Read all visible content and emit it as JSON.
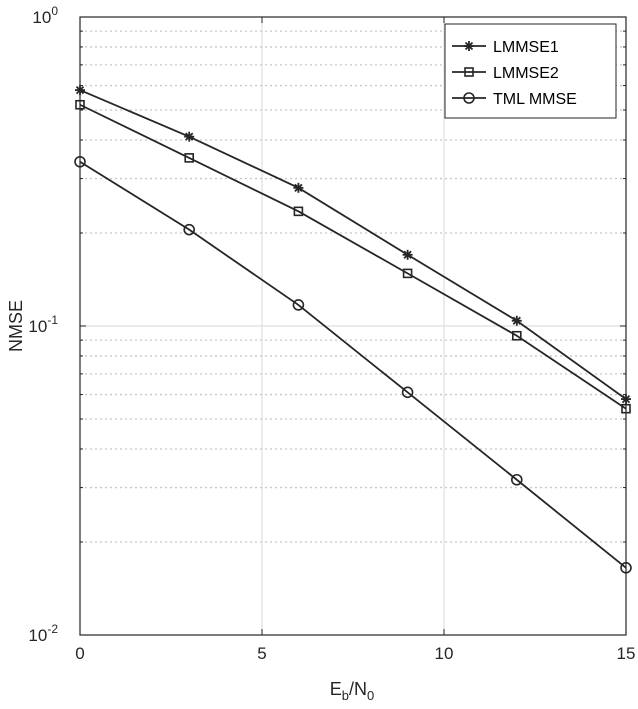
{
  "chart_data": {
    "type": "line",
    "title": "",
    "xlabel": {
      "base": "E",
      "sub1": "b",
      "sep": "/N",
      "sub2": "0"
    },
    "ylabel": "NMSE",
    "yscale": "log",
    "xlim": [
      0,
      15
    ],
    "ylim": [
      0.01,
      1
    ],
    "grid": true,
    "legend_position": "top-right",
    "x_ticks": [
      "0",
      "5",
      "10",
      "15"
    ],
    "y_ticks": [
      {
        "base": "10",
        "exp": "0",
        "value": 1
      },
      {
        "base": "10",
        "exp": "-1",
        "value": 0.1
      },
      {
        "base": "10",
        "exp": "-2",
        "value": 0.01
      }
    ],
    "x": [
      0,
      3,
      6,
      9,
      12,
      15
    ],
    "series": [
      {
        "name": "LMMSE1",
        "marker": "asterisk",
        "values": [
          0.58,
          0.41,
          0.28,
          0.17,
          0.104,
          0.058
        ]
      },
      {
        "name": "LMMSE2",
        "marker": "square",
        "values": [
          0.52,
          0.35,
          0.235,
          0.148,
          0.093,
          0.054
        ]
      },
      {
        "name": "TML MMSE",
        "marker": "circle",
        "values": [
          0.34,
          0.205,
          0.117,
          0.061,
          0.0318,
          0.0165
        ]
      }
    ],
    "colors": {
      "line": "#262626",
      "grid_major": "#dfdfdf",
      "grid_minor": "#c8c8c8",
      "axes": "#262626"
    }
  }
}
